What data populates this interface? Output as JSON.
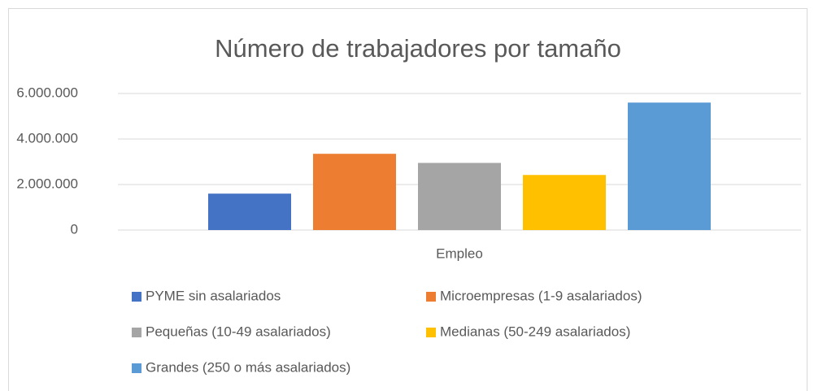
{
  "chart_data": {
    "type": "bar",
    "title": "Número de trabajadores por tamaño",
    "x_label": "Empleo",
    "categories": [
      "Empleo"
    ],
    "series": [
      {
        "name": "PYME sin asalariados",
        "color": "#4472c4",
        "values": [
          1600000
        ]
      },
      {
        "name": "Microempresas (1-9 asalariados)",
        "color": "#ed7d31",
        "values": [
          3350000
        ]
      },
      {
        "name": "Pequeñas (10-49 asalariados)",
        "color": "#a5a5a5",
        "values": [
          2950000
        ]
      },
      {
        "name": "Medianas (50-249 asalariados)",
        "color": "#ffc000",
        "values": [
          2420000
        ]
      },
      {
        "name": "Grandes (250 o más asalariados)",
        "color": "#5b9bd5",
        "values": [
          5600000
        ]
      }
    ],
    "ylim": [
      0,
      6000000
    ],
    "yticks": [
      {
        "value": 0,
        "label": "0"
      },
      {
        "value": 2000000,
        "label": "2.000.000"
      },
      {
        "value": 4000000,
        "label": "4.000.000"
      },
      {
        "value": 6000000,
        "label": "6.000.000"
      }
    ],
    "grid": true,
    "legend": "bottom"
  }
}
